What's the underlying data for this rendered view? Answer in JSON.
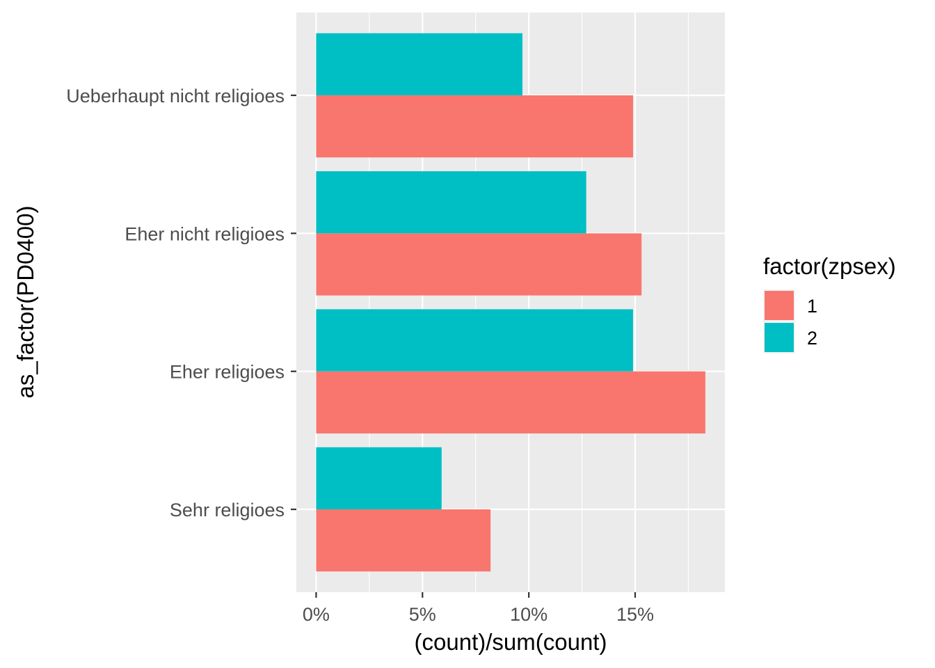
{
  "chart_data": {
    "type": "bar",
    "orientation": "horizontal",
    "categories": [
      "Sehr religioes",
      "Eher religioes",
      "Eher nicht religioes",
      "Ueberhaupt nicht religioes"
    ],
    "series": [
      {
        "name": "1",
        "color": "#F8766D",
        "values": [
          8.2,
          18.3,
          15.3,
          14.9
        ]
      },
      {
        "name": "2",
        "color": "#00BFC4",
        "values": [
          5.9,
          14.9,
          12.7,
          9.7
        ]
      }
    ],
    "xlabel": "(count)/sum(count)",
    "ylabel": "as_factor(PD0400)",
    "x_ticks": [
      0,
      5,
      10,
      15
    ],
    "x_tick_labels": [
      "0%",
      "5%",
      "10%",
      "15%"
    ],
    "xlim": [
      -0.93,
      19.22
    ],
    "legend": {
      "title": "factor(zpsex)",
      "position": "right"
    },
    "grid": true,
    "panel_background": "#EBEBEB"
  }
}
